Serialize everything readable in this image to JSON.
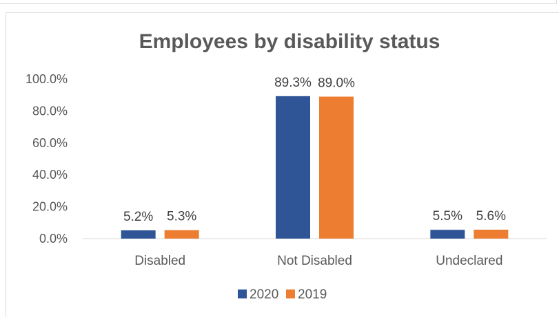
{
  "chart_data": {
    "type": "bar",
    "title": "Employees by disability status",
    "categories": [
      "Disabled",
      "Not Disabled",
      "Undeclared"
    ],
    "series": [
      {
        "name": "2020",
        "values": [
          5.2,
          89.3,
          5.5
        ],
        "labels": [
          "5.2%",
          "89.3%",
          "5.5%"
        ],
        "color": "#2f5597"
      },
      {
        "name": "2019",
        "values": [
          5.3,
          89.0,
          5.6
        ],
        "labels": [
          "5.3%",
          "89.0%",
          "5.6%"
        ],
        "color": "#ed7d31"
      }
    ],
    "yticks": [
      "0.0%",
      "20.0%",
      "40.0%",
      "60.0%",
      "80.0%",
      "100.0%"
    ],
    "ylim": [
      0,
      100
    ],
    "grid": false,
    "legend": "bottom"
  }
}
